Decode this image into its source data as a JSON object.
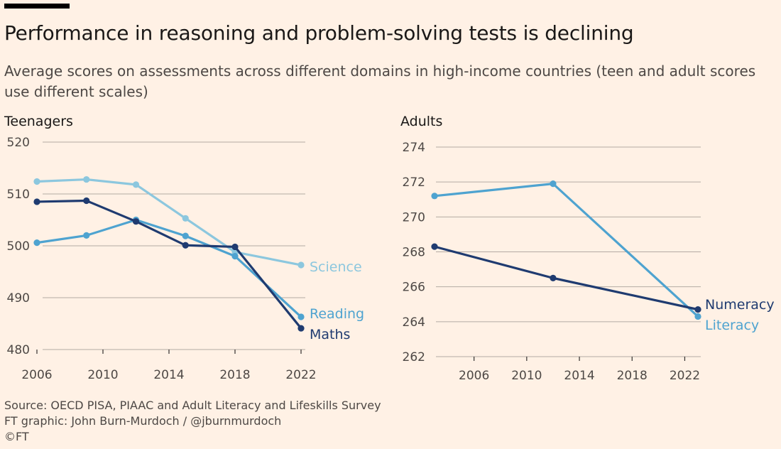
{
  "header": {
    "title": "Performance in reasoning and problem-solving tests is declining",
    "subtitle": "Average scores on assessments across different domains in high-income countries (teen and adult scores use different scales)"
  },
  "footer": {
    "source": "Source: OECD PISA, PIAAC and Adult Literacy and Lifeskills Survey",
    "credit": "FT graphic: John Burn-Murdoch / @jburnmurdoch",
    "copyright": "©FT"
  },
  "colors": {
    "background": "#fff1e5",
    "science": "#8cc7de",
    "reading": "#4ea3d0",
    "maths": "#1f3b70",
    "numeracy": "#1f3b70",
    "literacy": "#4ea3d0"
  },
  "chart_data": [
    {
      "type": "line",
      "title": "Teenagers",
      "xlabel": "",
      "ylabel": "",
      "xlim": [
        2006,
        2022
      ],
      "ylim": [
        480,
        520
      ],
      "x_ticks": [
        2006,
        2010,
        2014,
        2018,
        2022
      ],
      "y_ticks": [
        480,
        490,
        500,
        510,
        520
      ],
      "grid": true,
      "series": [
        {
          "name": "Science",
          "color": "#8cc7de",
          "x": [
            2006,
            2009,
            2012,
            2015,
            2018,
            2022
          ],
          "y": [
            512.4,
            512.8,
            511.8,
            505.3,
            498.8,
            496.3
          ]
        },
        {
          "name": "Reading",
          "color": "#4ea3d0",
          "x": [
            2006,
            2009,
            2012,
            2015,
            2018,
            2022
          ],
          "y": [
            500.6,
            502.0,
            505.0,
            501.9,
            498.0,
            486.3
          ]
        },
        {
          "name": "Maths",
          "color": "#1f3b70",
          "x": [
            2006,
            2009,
            2012,
            2015,
            2018,
            2022
          ],
          "y": [
            508.5,
            508.7,
            504.7,
            500.1,
            499.8,
            484.1
          ]
        }
      ]
    },
    {
      "type": "line",
      "title": "Adults",
      "xlabel": "",
      "ylabel": "",
      "xlim": [
        2003,
        2023
      ],
      "ylim": [
        262,
        274
      ],
      "x_ticks": [
        2006,
        2010,
        2014,
        2018,
        2022
      ],
      "y_ticks": [
        262,
        264,
        266,
        268,
        270,
        272,
        274
      ],
      "grid": true,
      "series": [
        {
          "name": "Literacy",
          "color": "#4ea3d0",
          "x": [
            2003,
            2012,
            2023
          ],
          "y": [
            271.2,
            271.9,
            264.3
          ]
        },
        {
          "name": "Numeracy",
          "color": "#1f3b70",
          "x": [
            2003,
            2012,
            2023
          ],
          "y": [
            268.3,
            266.5,
            264.7
          ]
        }
      ]
    }
  ]
}
